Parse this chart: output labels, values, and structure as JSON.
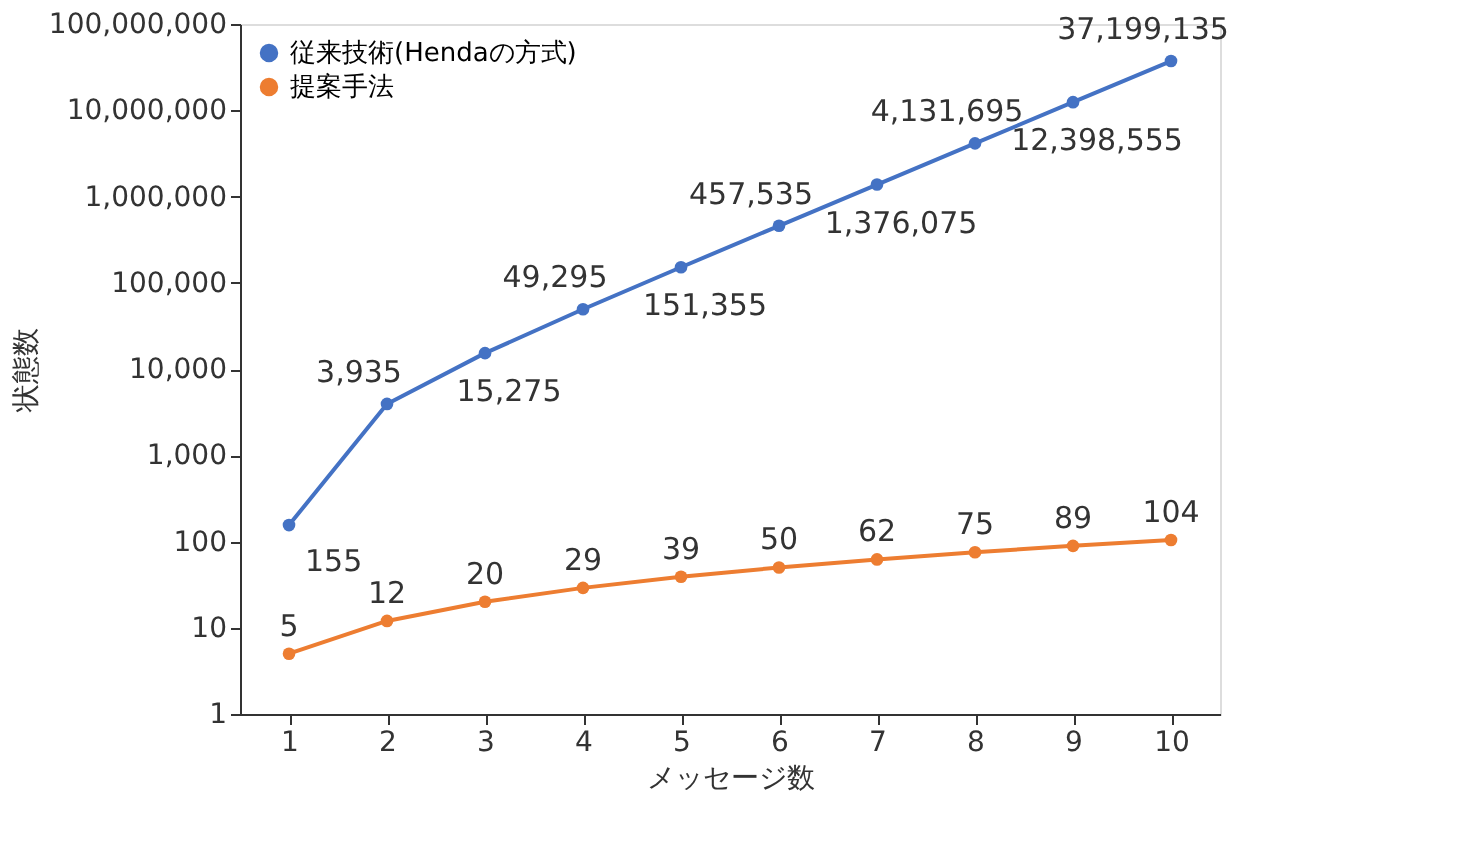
{
  "chart_data": {
    "type": "line",
    "xlabel": "メッセージ数",
    "ylabel": "状態数",
    "categories": [
      "1",
      "2",
      "3",
      "4",
      "5",
      "6",
      "7",
      "8",
      "9",
      "10"
    ],
    "series": [
      {
        "name": "従来技術(Hendaの方式)",
        "color": "#4472c4",
        "values": [
          155,
          3935,
          15275,
          49295,
          151355,
          457535,
          1376075,
          4131695,
          12398555,
          37199135
        ],
        "value_labels": [
          "155",
          "3,935",
          "15,275",
          "49,295",
          "151,355",
          "457,535",
          "1,376,075",
          "4,131,695",
          "12,398,555",
          "37,199,135"
        ]
      },
      {
        "name": "提案手法",
        "color": "#ed7d31",
        "values": [
          5,
          12,
          20,
          29,
          39,
          50,
          62,
          75,
          89,
          104
        ],
        "value_labels": [
          "5",
          "12",
          "20",
          "29",
          "39",
          "50",
          "62",
          "75",
          "89",
          "104"
        ]
      }
    ],
    "log": "y",
    "ylim": [
      1,
      100000000
    ],
    "yticks": [
      {
        "value": 1,
        "label": "1"
      },
      {
        "value": 10,
        "label": "10"
      },
      {
        "value": 100,
        "label": "100"
      },
      {
        "value": 1000,
        "label": "1,000"
      },
      {
        "value": 10000,
        "label": "10,000"
      },
      {
        "value": 100000,
        "label": "100,000"
      },
      {
        "value": 1000000,
        "label": "1,000,000"
      },
      {
        "value": 10000000,
        "label": "10,000,000"
      },
      {
        "value": 100000000,
        "label": "100,000,000"
      }
    ],
    "grid": false,
    "legend": "top left",
    "marker": "circle",
    "line_style": "solid"
  }
}
